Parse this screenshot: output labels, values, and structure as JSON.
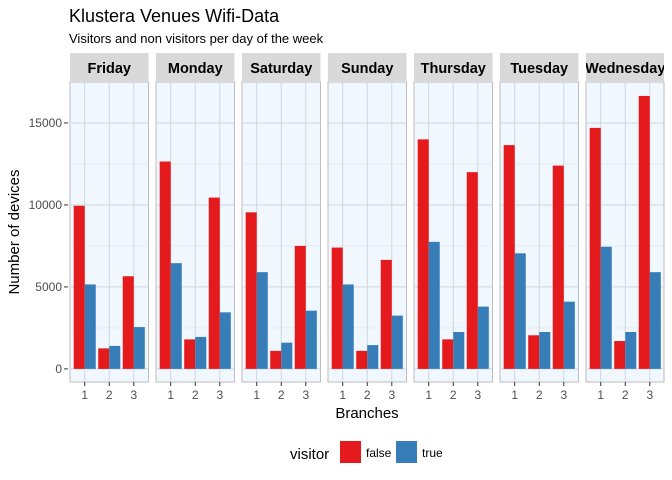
{
  "chart_data": {
    "type": "bar",
    "title": "Klustera Venues Wifi-Data",
    "subtitle": "Visitors and non visitors per day of the week",
    "xlabel": "Branches",
    "ylabel": "Number of devices",
    "ylim": [
      -800,
      17500
    ],
    "yticks": [
      0,
      5000,
      10000,
      15000
    ],
    "ytick_labels": [
      "0",
      "5000",
      "10000",
      "15000"
    ],
    "categories": [
      "1",
      "2",
      "3"
    ],
    "grid": true,
    "facet_by": "day",
    "legend": {
      "title": "visitor",
      "position": "bottom",
      "entries": [
        {
          "label": "false",
          "color": "#e41a1c"
        },
        {
          "label": "true",
          "color": "#377eb8"
        }
      ]
    },
    "panels": [
      {
        "label": "Friday",
        "series": [
          {
            "name": "false",
            "values": [
              9950,
              1250,
              5650
            ]
          },
          {
            "name": "true",
            "values": [
              5150,
              1400,
              2550
            ]
          }
        ]
      },
      {
        "label": "Monday",
        "series": [
          {
            "name": "false",
            "values": [
              12650,
              1800,
              10450
            ]
          },
          {
            "name": "true",
            "values": [
              6450,
              1950,
              3450
            ]
          }
        ]
      },
      {
        "label": "Saturday",
        "series": [
          {
            "name": "false",
            "values": [
              9550,
              1100,
              7500
            ]
          },
          {
            "name": "true",
            "values": [
              5900,
              1600,
              3550
            ]
          }
        ]
      },
      {
        "label": "Sunday",
        "series": [
          {
            "name": "false",
            "values": [
              7400,
              1100,
              6650
            ]
          },
          {
            "name": "true",
            "values": [
              5150,
              1450,
              3250
            ]
          }
        ]
      },
      {
        "label": "Thursday",
        "series": [
          {
            "name": "false",
            "values": [
              14000,
              1800,
              12000
            ]
          },
          {
            "name": "true",
            "values": [
              7750,
              2250,
              3800
            ]
          }
        ]
      },
      {
        "label": "Tuesday",
        "series": [
          {
            "name": "false",
            "values": [
              13650,
              2050,
              12400
            ]
          },
          {
            "name": "true",
            "values": [
              7050,
              2250,
              4100
            ]
          }
        ]
      },
      {
        "label": "Wednesday",
        "series": [
          {
            "name": "false",
            "values": [
              14700,
              1700,
              16650
            ]
          },
          {
            "name": "true",
            "values": [
              7450,
              2250,
              5900
            ]
          }
        ]
      }
    ]
  }
}
